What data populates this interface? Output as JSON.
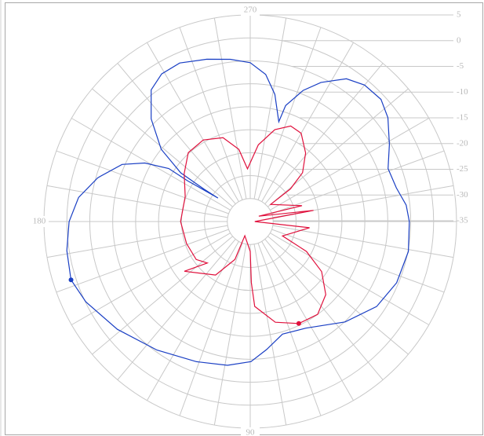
{
  "chart_data": {
    "type": "polar",
    "rlim": [
      -40,
      5
    ],
    "rticks": [
      5,
      0,
      -5,
      -10,
      -15,
      -20,
      -25,
      -30,
      -35
    ],
    "thetaticks": [
      270,
      180,
      90
    ],
    "grid": true,
    "series": [
      {
        "color": "#1a3fc4",
        "theta": [
          162,
          171,
          180,
          188,
          196,
          204,
          209,
          213,
          213,
          216,
          215,
          215,
          219,
          226,
          233,
          239,
          246,
          255,
          263,
          270,
          276,
          281,
          286,
          287,
          292,
          297,
          304,
          310,
          317,
          323,
          331,
          339,
          347,
          354,
          360,
          370.7,
          382.7,
          393.9,
          406.6,
          422.4,
          434,
          442.7,
          449.7,
          459,
          471,
          486,
          501,
          514,
          522
        ],
        "values": [
          1.1,
          0.5,
          -0.5,
          -2.2,
          -5.4,
          -9.4,
          -13.7,
          -18.8,
          -23.7,
          -31.3,
          -27.7,
          -21.5,
          -15,
          -8.9,
          -4.1,
          -2.5,
          -2.2,
          -3.4,
          -4.4,
          -5.4,
          -7.8,
          -11.8,
          -17.4,
          -13.6,
          -9.2,
          -6,
          -2.5,
          -1.2,
          -1,
          -2.4,
          -5.3,
          -7.8,
          -7.3,
          -5.8,
          -5.3,
          -4.9,
          -5.4,
          -6.8,
          -9.9,
          -13.8,
          -14.5,
          -11.9,
          -9.5,
          -8.3,
          -7.3,
          -5.4,
          -2.7,
          -0.1,
          1.1
        ]
      },
      {
        "color": "#e0103c",
        "theta": [
          64.5,
          76,
          87,
          89,
          90,
          111,
          112,
          123,
          143,
          136,
          145,
          161,
          180,
          201,
          216,
          228,
          240,
          252,
          261,
          267,
          276,
          285,
          293,
          300,
          309,
          317,
          321,
          320,
          343,
          328,
          350,
          360,
          366,
          384,
          388,
          395,
          404,
          414,
          424.5
        ],
        "values": [
          -15.4,
          -17.4,
          -21.5,
          -26.7,
          -33.5,
          -36.7,
          -31.1,
          -26.1,
          -22,
          -27,
          -25.6,
          -25.3,
          -24.8,
          -24.8,
          -22.2,
          -19.8,
          -19.5,
          -20.8,
          -24.1,
          -28.5,
          -23.2,
          -19.3,
          -17.4,
          -17.8,
          -20.8,
          -24.4,
          -28.7,
          -34.2,
          -28.2,
          -37.8,
          -26,
          -39,
          -27,
          -32.3,
          -26.1,
          -21,
          -17.1,
          -15,
          -15.4
        ]
      }
    ]
  }
}
